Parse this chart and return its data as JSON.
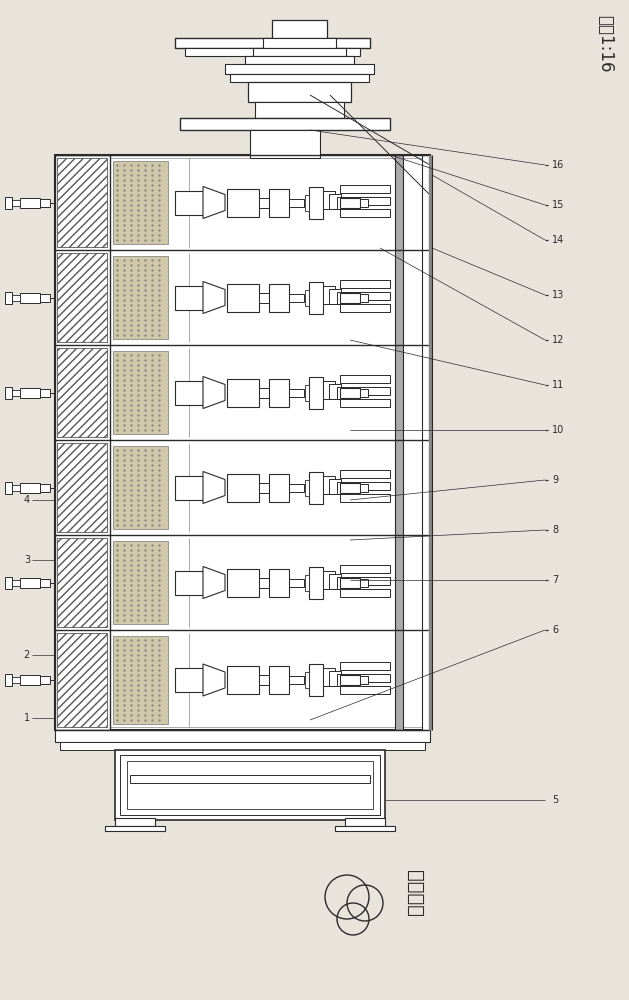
{
  "bg_color": "#e8e4dc",
  "line_color": "#2a2a2a",
  "fig_width": 6.29,
  "fig_height": 10.0,
  "title_right": "比例1:16",
  "label_bottom": "曲轴角度",
  "component_labels": [
    "1",
    "2",
    "3",
    "4",
    "5",
    "6",
    "7",
    "8",
    "9",
    "10",
    "11",
    "12",
    "13",
    "14",
    "15",
    "16"
  ]
}
